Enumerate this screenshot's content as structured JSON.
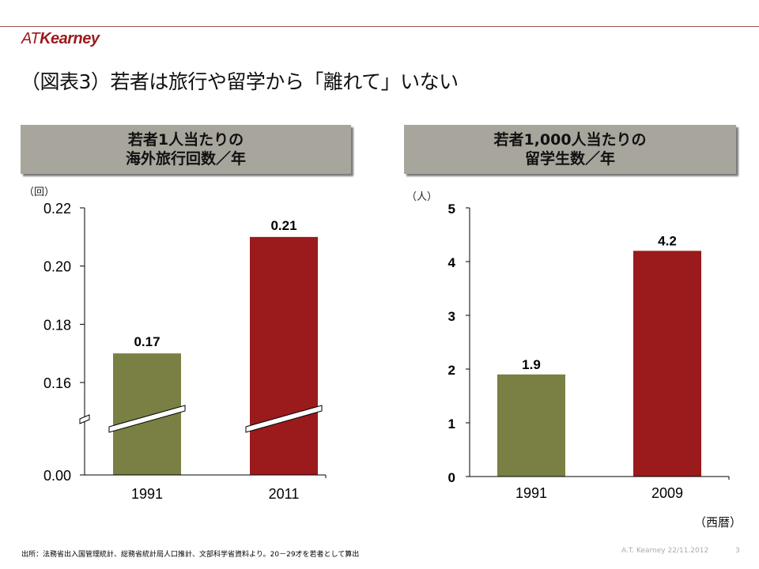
{
  "header": {
    "logo_at": "AT",
    "logo_kearney": "Kearney",
    "title": "（図表3）若者は旅行や留学から「離れて」いない"
  },
  "colors": {
    "bar_1991": "#7a8043",
    "bar_recent": "#9b1a1b",
    "header_bg": "#a7a59c",
    "brand": "#9a1b1f"
  },
  "panels": {
    "left": {
      "title_line1": "若者1人当たりの",
      "title_line2": "海外旅行回数／年",
      "unit": "（回）"
    },
    "right": {
      "title_line1": "若者1,000人当たりの",
      "title_line2": "留学生数／年",
      "unit": "（人）"
    }
  },
  "chart_data": [
    {
      "type": "bar",
      "title": "若者1人当たりの海外旅行回数／年",
      "ylabel": "（回）",
      "xlabel": "",
      "categories": [
        "1991",
        "2011"
      ],
      "values": [
        0.17,
        0.21
      ],
      "data_labels": [
        "0.17",
        "0.21"
      ],
      "yticks": [
        "0.00",
        "0.16",
        "0.18",
        "0.20",
        "0.22"
      ],
      "ylim": [
        0.0,
        0.22
      ],
      "axis_break": [
        0.0,
        0.16
      ],
      "grid": false,
      "legend": "none"
    },
    {
      "type": "bar",
      "title": "若者1,000人当たりの留学生数／年",
      "ylabel": "（人）",
      "xlabel": "（西暦）",
      "categories": [
        "1991",
        "2009"
      ],
      "values": [
        1.9,
        4.2
      ],
      "data_labels": [
        "1.9",
        "4.2"
      ],
      "yticks": [
        "0",
        "1",
        "2",
        "3",
        "4",
        "5"
      ],
      "ylim": [
        0,
        5
      ],
      "grid": false,
      "legend": "none"
    }
  ],
  "footer": {
    "source_note": "出所：法務省出入国管理統計、総務省統計局人口推計、文部科学省資料より。20－29才を若者として算出",
    "company_date": "A.T. Kearney 22/11.2012",
    "page_number": "3"
  }
}
